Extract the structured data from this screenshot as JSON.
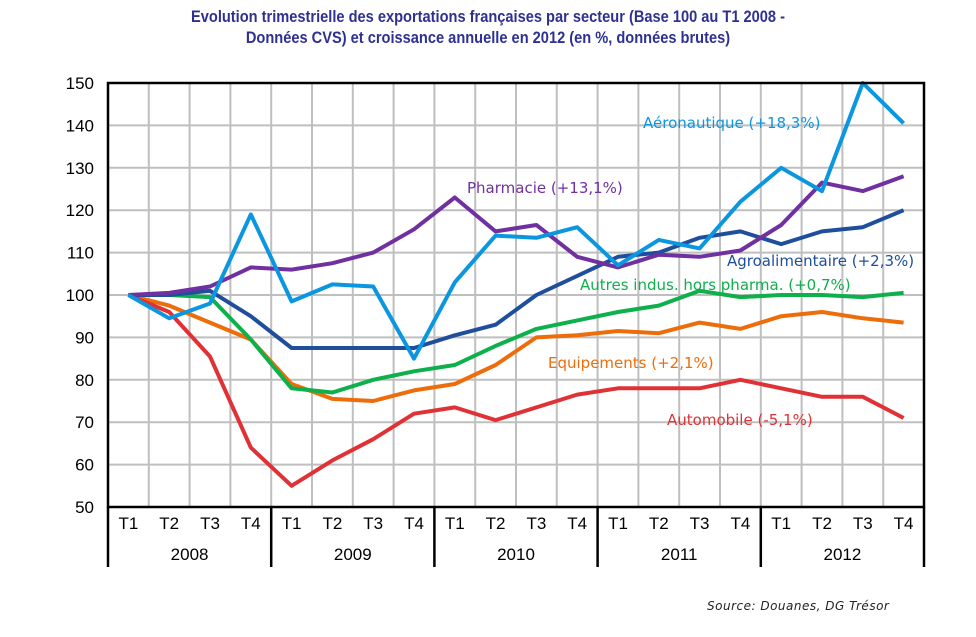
{
  "chart_data": {
    "type": "line",
    "title_lines": [
      "Evolution trimestrielle des exportations françaises par secteur (Base 100 au T1 2008 -",
      "Données CVS) et croissance annuelle en 2012 (en %, données brutes)"
    ],
    "quarters": [
      "T1",
      "T2",
      "T3",
      "T4",
      "T1",
      "T2",
      "T3",
      "T4",
      "T1",
      "T2",
      "T3",
      "T4",
      "T1",
      "T2",
      "T3",
      "T4",
      "T1",
      "T2",
      "T3",
      "T4"
    ],
    "years": [
      "2008",
      "2009",
      "2010",
      "2011",
      "2012"
    ],
    "ylim": [
      50,
      150
    ],
    "yticks": [
      "50",
      "60",
      "70",
      "80",
      "90",
      "100",
      "110",
      "120",
      "130",
      "140",
      "150"
    ],
    "grid": true,
    "series": [
      {
        "name": "Aéronautique (+18,3%)",
        "color": "#0b96e0",
        "values": [
          100,
          94.5,
          98,
          119,
          98.5,
          102.5,
          102,
          85,
          103,
          114,
          113.5,
          116,
          107,
          113,
          111,
          122,
          130,
          124.5,
          150,
          140.5
        ]
      },
      {
        "name": "Pharmacie (+13,1%)",
        "color": "#7030a0",
        "values": [
          100,
          100.5,
          102,
          106.5,
          106,
          107.5,
          110,
          115.5,
          123,
          115,
          116.5,
          109,
          106.5,
          109.5,
          109,
          110.5,
          116.5,
          126.5,
          124.5,
          128
        ]
      },
      {
        "name": "Agroalimentaire (+2,3%)",
        "color": "#1f4e9c",
        "values": [
          100,
          100,
          101,
          95,
          87.5,
          87.5,
          87.5,
          87.5,
          90.5,
          93,
          100,
          104.5,
          109,
          110,
          113.5,
          115,
          112,
          115,
          116,
          120
        ]
      },
      {
        "name": "Autres indus. hors pharma. (+0,7%)",
        "color": "#0db04b",
        "values": [
          100,
          100,
          99.5,
          89.5,
          78,
          77,
          80,
          82,
          83.5,
          88,
          92,
          94,
          96,
          97.5,
          101,
          99.5,
          100,
          100,
          99.5,
          100.5
        ]
      },
      {
        "name": "Equipements (+2,1%)",
        "color": "#ee6d0b",
        "values": [
          100,
          97.5,
          93.5,
          89.5,
          79,
          75.5,
          75,
          77.5,
          79,
          83.5,
          90,
          90.5,
          91.5,
          91,
          93.5,
          92,
          95,
          96,
          94.5,
          93.5
        ]
      },
      {
        "name": "Automobile (-5,1%)",
        "color": "#e03236",
        "values": [
          100,
          96,
          85.5,
          64,
          55,
          61,
          66,
          72,
          73.5,
          70.5,
          73.5,
          76.5,
          78,
          78,
          78,
          80,
          78,
          76,
          76,
          71
        ]
      }
    ],
    "source": "Source: Douanes, DG Trésor"
  }
}
